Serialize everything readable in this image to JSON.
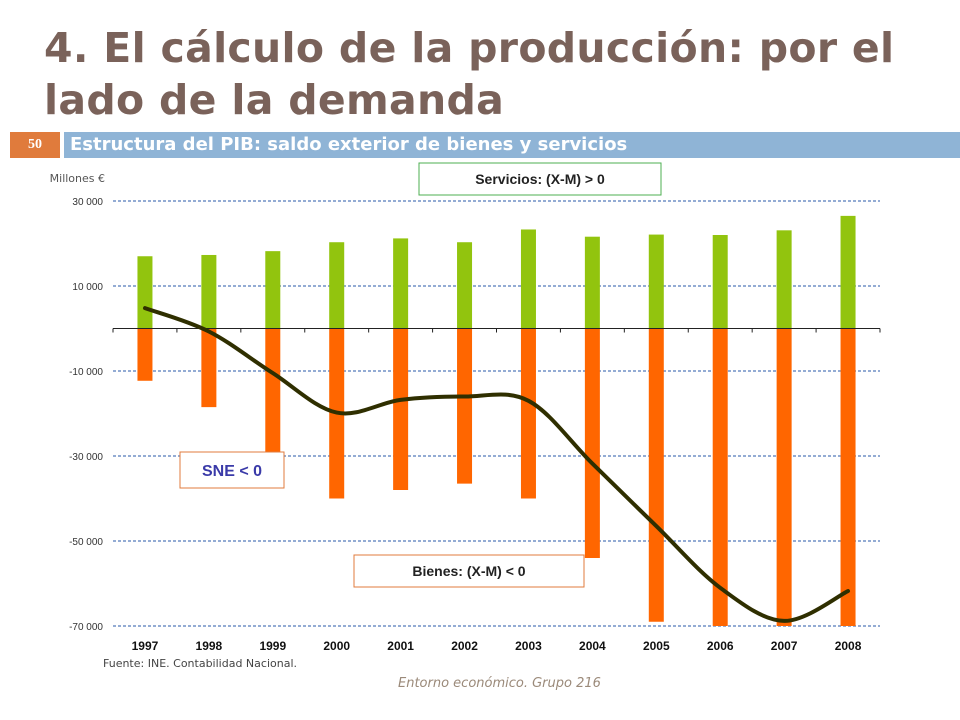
{
  "slide": {
    "title": "4. El cálculo de la producción: por el lado de la demanda",
    "number": "50",
    "section_title": "Estructura del PIB: saldo exterior de bienes y servicios",
    "footer": "Entorno económico. Grupo 216"
  },
  "chart_data": {
    "type": "bar",
    "ylabel": "Millones €",
    "ylim": [
      -70000,
      30000
    ],
    "yticks": [
      30000,
      10000,
      -10000,
      -30000,
      -50000,
      -70000
    ],
    "ytick_labels": [
      "30 000",
      "10 000",
      "-10 000",
      "-30 000",
      "-50 000",
      "-70 000"
    ],
    "categories": [
      "1997",
      "1998",
      "1999",
      "2000",
      "2001",
      "2002",
      "2003",
      "2004",
      "2005",
      "2006",
      "2007",
      "2008"
    ],
    "series": [
      {
        "key": "servicios",
        "type": "bar",
        "color": "#92c40e",
        "values": [
          17000,
          17300,
          18200,
          20300,
          21200,
          20300,
          23300,
          21600,
          22100,
          22000,
          23100,
          26500
        ]
      },
      {
        "key": "bienes",
        "type": "bar",
        "color": "#ff6600",
        "values": [
          -12300,
          -18500,
          -29500,
          -40000,
          -38000,
          -36500,
          -40000,
          -54000,
          -69000,
          -71500,
          -73500,
          -70500
        ]
      },
      {
        "key": "sne",
        "type": "line",
        "color": "#2f2f00",
        "values": [
          4800,
          -700,
          -10500,
          -19800,
          -16800,
          -16000,
          -17000,
          -31800,
          -46500,
          -61000,
          -68800,
          -61800
        ]
      }
    ],
    "annotations": [
      {
        "key": "servicios",
        "text": "Servicios: (X-M) > 0",
        "border": "#4caf50",
        "color": "#222222"
      },
      {
        "key": "sne",
        "text": "SNE < 0",
        "border": "#e07b3c",
        "color": "#3a3aa8"
      },
      {
        "key": "bienes",
        "text": "Bienes: (X-M) < 0",
        "border": "#e07b3c",
        "color": "#222222"
      }
    ],
    "source": "Fuente:   INE.  Contabilidad   Nacional.",
    "grid": true,
    "gridline_color": "#2a5aa8"
  }
}
